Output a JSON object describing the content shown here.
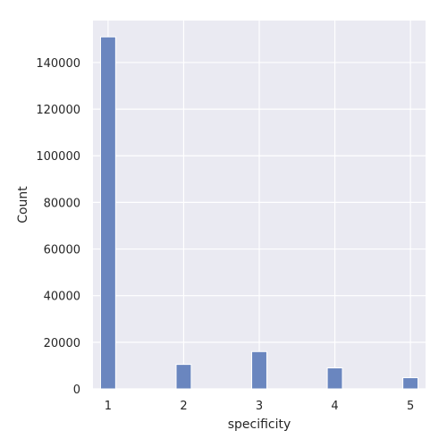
{
  "chart_data": {
    "type": "bar",
    "title": "",
    "xlabel": "specificity",
    "ylabel": "Count",
    "xlim": [
      0.8,
      5.2
    ],
    "ylim": [
      0,
      158000
    ],
    "x_ticks": [
      1,
      2,
      3,
      4,
      5
    ],
    "y_ticks": [
      0,
      20000,
      40000,
      60000,
      80000,
      100000,
      120000,
      140000
    ],
    "bin_width": 0.2,
    "bars": [
      {
        "x": 1,
        "value": 151000
      },
      {
        "x": 2,
        "value": 10500
      },
      {
        "x": 3,
        "value": 16000
      },
      {
        "x": 4,
        "value": 9000
      },
      {
        "x": 5,
        "value": 4800
      }
    ],
    "grid": true,
    "colors": {
      "background": "#eaeaf2",
      "grid": "#ffffff",
      "bar_fill": "#6a86bf",
      "bar_edge": "#ffffff"
    }
  }
}
